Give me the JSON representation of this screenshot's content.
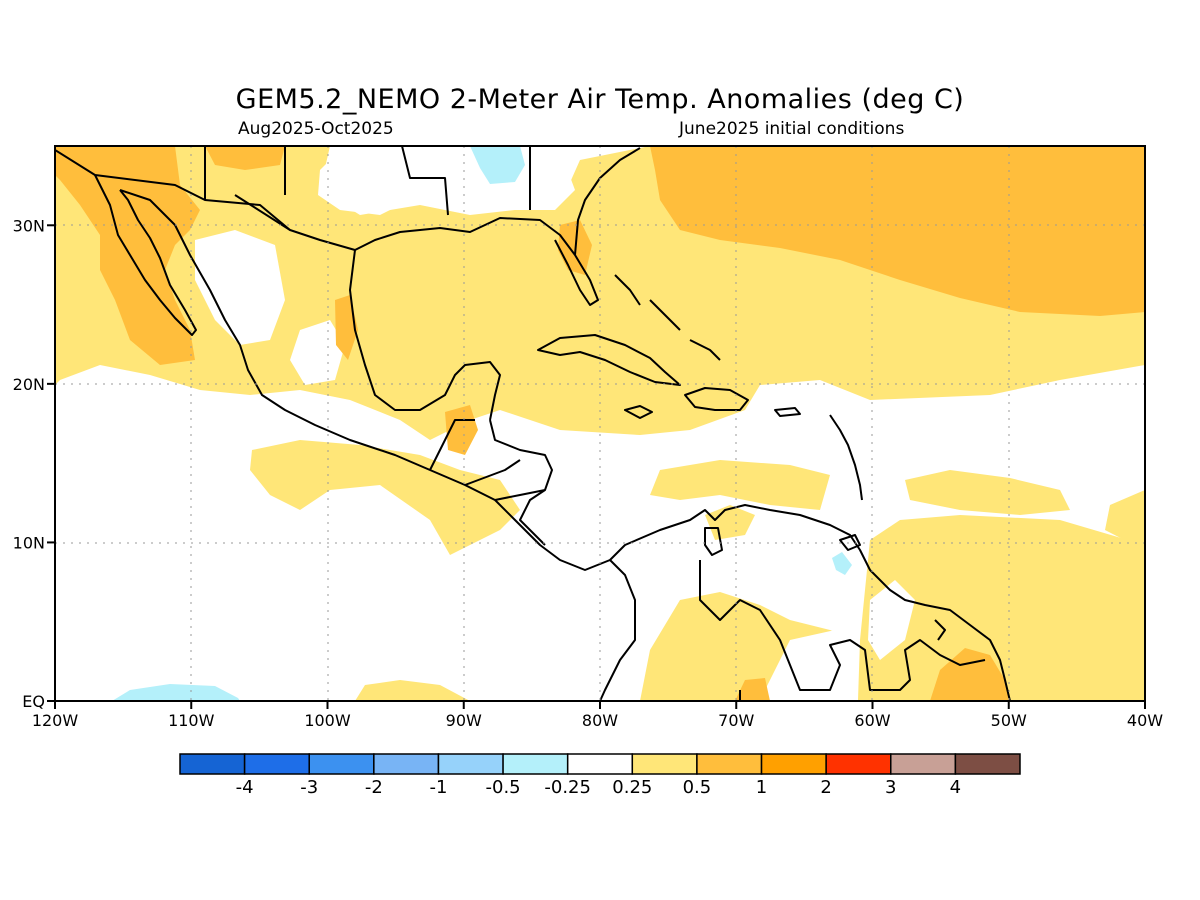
{
  "header": {
    "title": "GEM5.2_NEMO 2-Meter Air Temp. Anomalies (deg C)",
    "period": "Aug2025-Oct2025",
    "init": "June2025 initial conditions"
  },
  "map": {
    "region": {
      "lon": [
        -120,
        -40
      ],
      "lat": [
        0,
        35
      ]
    },
    "lat_ticks": [
      "EQ",
      "10N",
      "20N",
      "30N"
    ],
    "lon_ticks": [
      "120W",
      "110W",
      "100W",
      "90W",
      "80W",
      "70W",
      "60W",
      "50W",
      "40W"
    ],
    "gridlines": "dotted"
  },
  "colorbar": {
    "labels": [
      "-4",
      "-3",
      "-2",
      "-1",
      "-0.5",
      "-0.25",
      "0.25",
      "0.5",
      "1",
      "2",
      "3",
      "4"
    ],
    "colors": [
      "#1564d4",
      "#1e6ee8",
      "#3c91f0",
      "#78b4f5",
      "#96d2fa",
      "#b4f0fa",
      "#ffffff",
      "#ffe678",
      "#ffbe3c",
      "#ffa000",
      "#ff3200",
      "#c8a096",
      "#7d4e44"
    ]
  },
  "palette": {
    "light_yellow": "#ffe678",
    "orange": "#ffbe3c",
    "dark_orange": "#ffa000",
    "light_blue": "#b4f0fa"
  }
}
